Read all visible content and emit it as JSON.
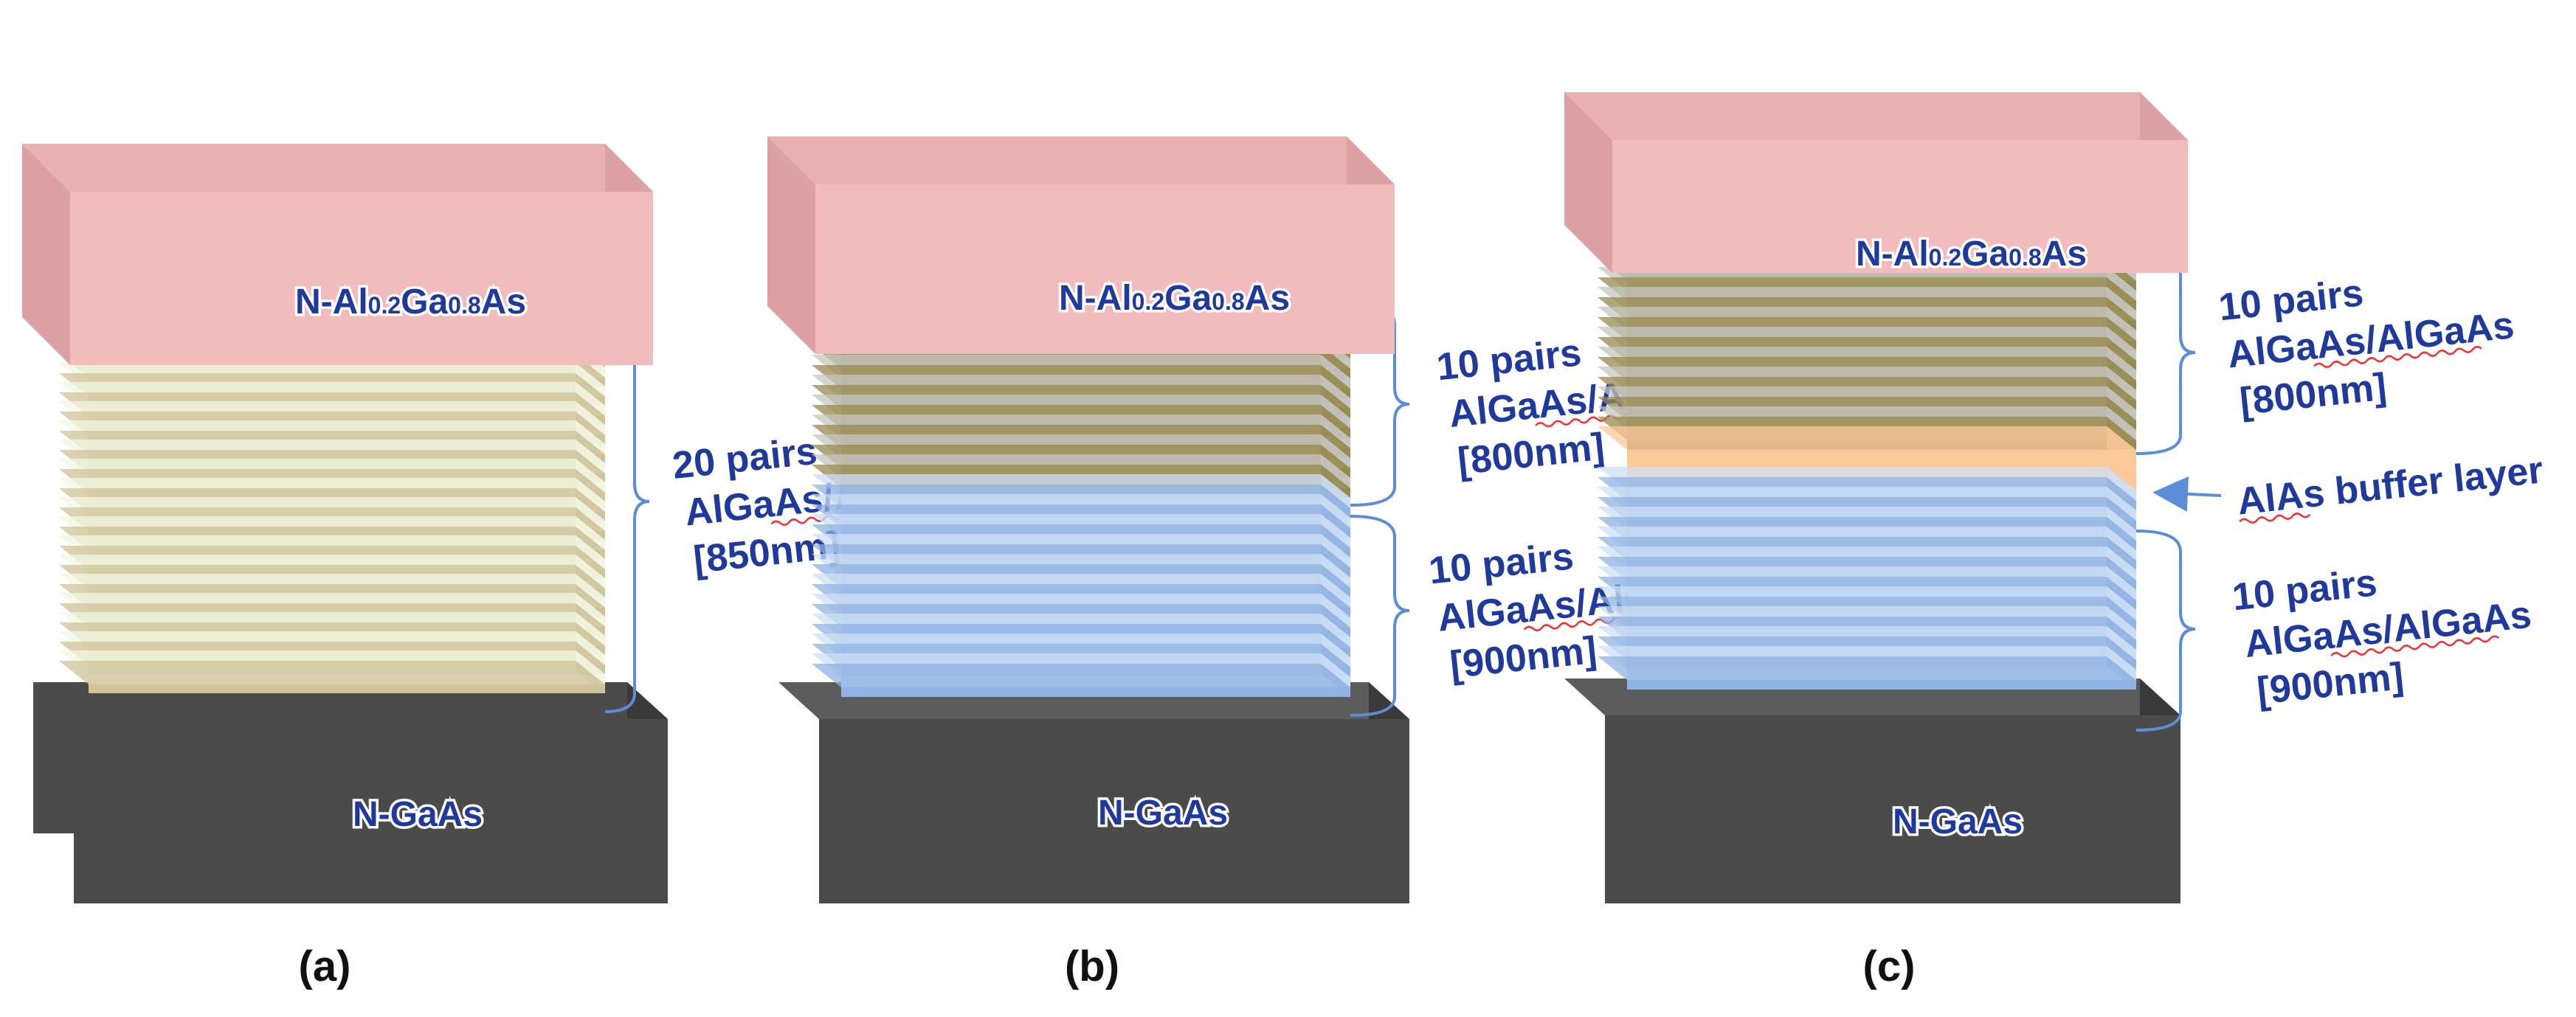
{
  "colors": {
    "top_front": "#f2bcbf",
    "top_top": "#e8b0b2",
    "top_side": "#dca1a5",
    "sub_front": "#4b4b4b",
    "sub_top": "#5c5c5c",
    "sub_side": "#3a3a3a",
    "layer_850_a": "#f2f7e2",
    "layer_850_b": "#cfc39a",
    "layer_800_a": "#c5c5c2",
    "layer_800_b": "#978a4e",
    "layer_900_a": "#cddff6",
    "layer_900_b": "#8fb3e2",
    "buffer": "#fcc99a",
    "label_text": "#1f3a9c",
    "brace": "#5b8ed6"
  },
  "panels": [
    {
      "caption": "(a)",
      "top_label": {
        "base": "N-Al",
        "sub1": "0.2",
        "mid": "Ga",
        "sub2": "0.8",
        "tail": "As"
      },
      "substrate_label": "N-GaAs",
      "annotations": [
        {
          "line1": "20 pairs",
          "line2": "AlGaAs/AlGaAs",
          "line3": "[850nm]"
        }
      ]
    },
    {
      "caption": "(b)",
      "top_label": {
        "base": "N-Al",
        "sub1": "0.2",
        "mid": "Ga",
        "sub2": "0.8",
        "tail": "As"
      },
      "substrate_label": "N-GaAs",
      "annotations": [
        {
          "line1": "10 pairs",
          "line2": "AlGaAs/AlGaAs",
          "line3": "[800nm]"
        },
        {
          "line1": "10 pairs",
          "line2": "AlGaAs/AlGaAs",
          "line3": "[900nm]"
        }
      ]
    },
    {
      "caption": "(c)",
      "top_label": {
        "base": "N-Al",
        "sub1": "0.2",
        "mid": "Ga",
        "sub2": "0.8",
        "tail": "As"
      },
      "substrate_label": "N-GaAs",
      "annotations": [
        {
          "line1": "10 pairs",
          "line2": "AlGaAs/AlGaAs",
          "line3": "[800nm]"
        },
        {
          "line1": "AlAs buffer layer"
        },
        {
          "line1": "10 pairs",
          "line2": "AlGaAs/AlGaAs",
          "line3": "[900nm]"
        }
      ]
    }
  ]
}
